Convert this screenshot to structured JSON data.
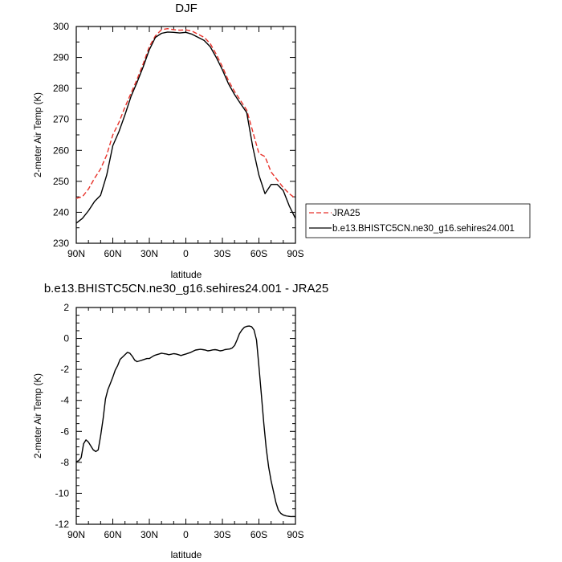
{
  "chart_data": [
    {
      "type": "line",
      "title": "DJF",
      "xlabel": "latitude",
      "ylabel": "2-meter Air Temp (K)",
      "xlim": [
        90,
        -90
      ],
      "ylim": [
        230,
        300
      ],
      "x_ticks": [
        {
          "value": 90,
          "label": "90N"
        },
        {
          "value": 60,
          "label": "60N"
        },
        {
          "value": 30,
          "label": "30N"
        },
        {
          "value": 0,
          "label": "0"
        },
        {
          "value": -30,
          "label": "30S"
        },
        {
          "value": -60,
          "label": "60S"
        },
        {
          "value": -90,
          "label": "90S"
        }
      ],
      "y_ticks": [
        230,
        240,
        250,
        260,
        270,
        280,
        290,
        300
      ],
      "legend_position": "right",
      "series": [
        {
          "name": "JRA25",
          "color": "#e8322a",
          "dash": true,
          "x": [
            90,
            85,
            80,
            75,
            70,
            65,
            60,
            55,
            50,
            45,
            40,
            35,
            30,
            25,
            20,
            15,
            10,
            5,
            0,
            -5,
            -10,
            -15,
            -20,
            -25,
            -30,
            -35,
            -40,
            -45,
            -50,
            -55,
            -60,
            -65,
            -70,
            -75,
            -80,
            -85,
            -90
          ],
          "y": [
            244.5,
            245,
            247.5,
            251,
            254,
            258.5,
            265,
            269,
            274,
            278.5,
            283,
            288,
            293.5,
            297,
            299,
            299.3,
            299,
            298.8,
            298.9,
            298.5,
            297.5,
            296.5,
            294.5,
            291,
            287,
            282.5,
            279,
            276,
            273,
            266,
            259,
            258,
            253,
            250.5,
            248,
            246,
            244.5
          ]
        },
        {
          "name": "b.e13.BHISTC5CN.ne30_g16.sehires24.001",
          "color": "#000000",
          "dash": false,
          "x": [
            90,
            85,
            80,
            75,
            70,
            65,
            60,
            55,
            50,
            45,
            40,
            35,
            30,
            25,
            20,
            15,
            10,
            5,
            0,
            -5,
            -10,
            -15,
            -20,
            -25,
            -30,
            -35,
            -40,
            -45,
            -50,
            -55,
            -60,
            -65,
            -70,
            -75,
            -80,
            -85,
            -90
          ],
          "y": [
            236.5,
            238,
            240.5,
            243.5,
            245.5,
            252,
            261.5,
            266,
            271.5,
            277.5,
            282,
            287,
            292.5,
            296.5,
            297.8,
            298.2,
            298.1,
            297.9,
            298.1,
            297.5,
            296.5,
            295.5,
            293.5,
            290,
            286,
            281.5,
            278,
            275,
            272.2,
            261,
            252,
            246,
            249,
            249,
            247,
            242,
            238
          ]
        }
      ]
    },
    {
      "type": "line",
      "title": "b.e13.BHISTC5CN.ne30_g16.sehires24.001 - JRA25",
      "xlabel": "latitude",
      "ylabel": "2-meter Air Temp (K)",
      "xlim": [
        90,
        -90
      ],
      "ylim": [
        -12,
        2
      ],
      "x_ticks": [
        {
          "value": 90,
          "label": "90N"
        },
        {
          "value": 60,
          "label": "60N"
        },
        {
          "value": 30,
          "label": "30N"
        },
        {
          "value": 0,
          "label": "0"
        },
        {
          "value": -30,
          "label": "30S"
        },
        {
          "value": -60,
          "label": "60S"
        },
        {
          "value": -90,
          "label": "90S"
        }
      ],
      "y_ticks": [
        -12,
        -10,
        -8,
        -6,
        -4,
        -2,
        0,
        2
      ],
      "series": [
        {
          "color": "#000000",
          "dash": false,
          "x": [
            90,
            88,
            86,
            84,
            82,
            80,
            78,
            76,
            74,
            72,
            70,
            68,
            66,
            64,
            62,
            60,
            58,
            56,
            54,
            52,
            50,
            48,
            46,
            44,
            42,
            40,
            38,
            36,
            34,
            32,
            30,
            28,
            26,
            24,
            22,
            20,
            18,
            16,
            14,
            12,
            10,
            8,
            6,
            4,
            2,
            0,
            -2,
            -4,
            -6,
            -8,
            -10,
            -12,
            -14,
            -16,
            -18,
            -20,
            -22,
            -24,
            -26,
            -28,
            -30,
            -32,
            -34,
            -36,
            -38,
            -40,
            -42,
            -44,
            -46,
            -48,
            -50,
            -52,
            -54,
            -56,
            -58,
            -60,
            -62,
            -64,
            -66,
            -68,
            -70,
            -72,
            -74,
            -76,
            -78,
            -80,
            -82,
            -84,
            -86,
            -88,
            -90
          ],
          "y": [
            -7.95,
            -7.9,
            -7.7,
            -6.8,
            -6.55,
            -6.7,
            -6.95,
            -7.2,
            -7.3,
            -7.2,
            -6.3,
            -5.2,
            -3.9,
            -3.3,
            -2.9,
            -2.5,
            -2.05,
            -1.75,
            -1.35,
            -1.2,
            -1.05,
            -0.9,
            -0.95,
            -1.15,
            -1.4,
            -1.5,
            -1.45,
            -1.4,
            -1.35,
            -1.3,
            -1.3,
            -1.2,
            -1.1,
            -1.05,
            -1.0,
            -0.95,
            -0.98,
            -1.0,
            -1.05,
            -1.02,
            -0.98,
            -1.0,
            -1.05,
            -1.1,
            -1.05,
            -1.0,
            -0.95,
            -0.9,
            -0.82,
            -0.75,
            -0.72,
            -0.7,
            -0.72,
            -0.75,
            -0.8,
            -0.78,
            -0.74,
            -0.72,
            -0.75,
            -0.8,
            -0.78,
            -0.72,
            -0.7,
            -0.68,
            -0.62,
            -0.45,
            -0.1,
            0.3,
            0.55,
            0.72,
            0.78,
            0.8,
            0.76,
            0.55,
            -0.1,
            -1.8,
            -3.6,
            -5.5,
            -7.1,
            -8.3,
            -9.2,
            -9.9,
            -10.6,
            -11.1,
            -11.3,
            -11.4,
            -11.45,
            -11.48,
            -11.5,
            -11.5,
            -11.5
          ]
        }
      ]
    }
  ]
}
